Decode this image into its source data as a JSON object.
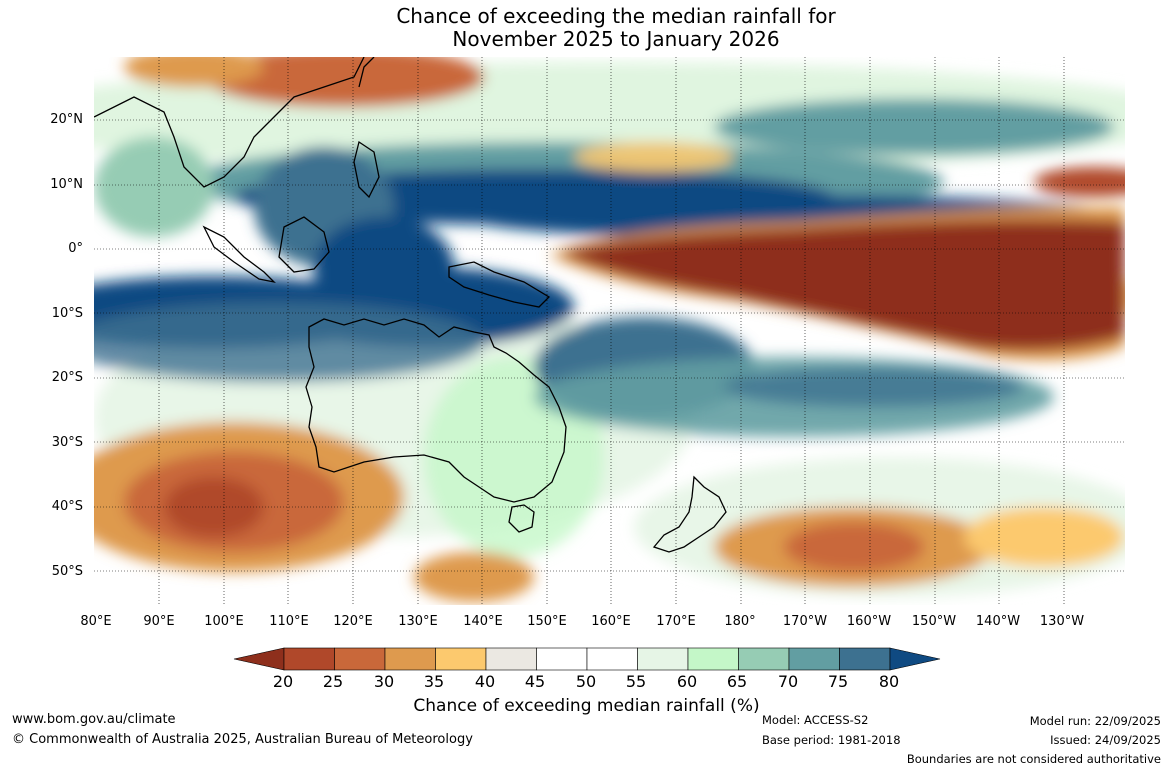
{
  "title_line1": "Chance of exceeding the median rainfall for",
  "title_line2": "November 2025 to January 2026",
  "lat_labels": [
    "20°N",
    "10°N",
    "0°",
    "10°S",
    "20°S",
    "30°S",
    "40°S",
    "50°S"
  ],
  "lon_labels": [
    "80°E",
    "90°E",
    "100°E",
    "110°E",
    "120°E",
    "130°E",
    "140°E",
    "150°E",
    "160°E",
    "170°E",
    "180°",
    "170°W",
    "160°W",
    "150°W",
    "140°W",
    "130°W"
  ],
  "colorbar": {
    "labels": [
      "20",
      "25",
      "30",
      "35",
      "40",
      "45",
      "50",
      "55",
      "60",
      "65",
      "70",
      "75",
      "80"
    ],
    "colors": [
      "#8e2f1c",
      "#b0482a",
      "#c9683a",
      "#de9a4e",
      "#fcc96e",
      "#ebe8e2",
      "#ffffff",
      "#ffffff",
      "#e6f5e6",
      "#c4f7c8",
      "#96ccb4",
      "#629ea2",
      "#3d7190",
      "#0f4a82"
    ],
    "title": "Chance of exceeding median rainfall (%)"
  },
  "footer": {
    "url": "www.bom.gov.au/climate",
    "copyright": "© Commonwealth of Australia 2025, Australian Bureau of Meteorology",
    "model": "Model: ACCESS-S2",
    "base_period": "Base period: 1981-2018",
    "model_run": "Model run: 22/09/2025",
    "issued": "Issued: 24/09/2025",
    "disclaimer": "Boundaries are not considered authoritative"
  }
}
